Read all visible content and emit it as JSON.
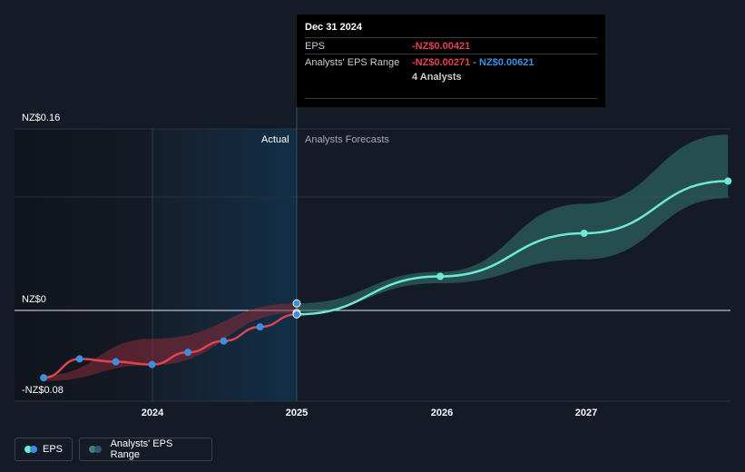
{
  "chart_data": {
    "type": "line",
    "y_axis": {
      "labels": [
        "NZ$0.16",
        "NZ$0",
        "-NZ$0.08"
      ],
      "ylim": [
        -0.08,
        0.16
      ]
    },
    "x_axis": {
      "ticks": [
        "2024",
        "2025",
        "2026",
        "2027"
      ]
    },
    "sections": {
      "actual_label": "Actual",
      "forecast_label": "Analysts Forecasts"
    },
    "series": [
      {
        "name": "EPS",
        "actual_points": [
          {
            "x": "2023-03-31",
            "y": -0.0715
          },
          {
            "x": "2023-06-30",
            "y": -0.0515
          },
          {
            "x": "2023-09-30",
            "y": -0.0545
          },
          {
            "x": "2023-12-31",
            "y": -0.0575
          },
          {
            "x": "2024-03-31",
            "y": -0.0445
          },
          {
            "x": "2024-06-30",
            "y": -0.0325
          },
          {
            "x": "2024-09-30",
            "y": -0.0175
          },
          {
            "x": "2024-12-31",
            "y": -0.0042
          }
        ],
        "forecast_points": [
          {
            "x": "2024-12-31",
            "y": -0.0042
          },
          {
            "x": "2025-12-31",
            "y": 0.03
          },
          {
            "x": "2026-12-31",
            "y": 0.068
          },
          {
            "x": "2027-12-31",
            "y": 0.114
          }
        ]
      },
      {
        "name": "Analysts' EPS Range",
        "actual_band": [
          {
            "x": "2023-03-31",
            "low": -0.075,
            "high": -0.069
          },
          {
            "x": "2024-01-01",
            "low": -0.058,
            "high": -0.03
          },
          {
            "x": "2024-12-31",
            "low": -0.0027,
            "high": 0.0062
          }
        ],
        "forecast_band": [
          {
            "x": "2024-12-31",
            "low": -0.0027,
            "high": 0.0062
          },
          {
            "x": "2025-12-31",
            "low": 0.024,
            "high": 0.034
          },
          {
            "x": "2026-12-31",
            "low": 0.045,
            "high": 0.094
          },
          {
            "x": "2027-12-31",
            "low": 0.099,
            "high": 0.155
          }
        ]
      }
    ],
    "legend": [
      {
        "label": "EPS",
        "colors": [
          "#6ee8d8",
          "#3b8fe0"
        ]
      },
      {
        "label": "Analysts' EPS Range",
        "colors": [
          "#3f7f7d",
          "#3a5573"
        ]
      }
    ],
    "colors": {
      "eps_actual": "#e0434f",
      "eps_forecast": "#6ee8d8",
      "point_actual": "#3b8fe0",
      "band_actual": "#8b2c38",
      "band_forecast": "#2f6a66",
      "highlight": "#123049"
    }
  },
  "tooltip": {
    "date": "Dec 31 2024",
    "eps_label": "EPS",
    "eps_value": "-NZ$0.00421",
    "range_label": "Analysts' EPS Range",
    "range_low": "-NZ$0.00271",
    "range_sep": " - ",
    "range_high": "NZ$0.00621",
    "analysts": "4 Analysts",
    "eps_color": "#e0434f",
    "range_high_color": "#3b8fe0"
  }
}
